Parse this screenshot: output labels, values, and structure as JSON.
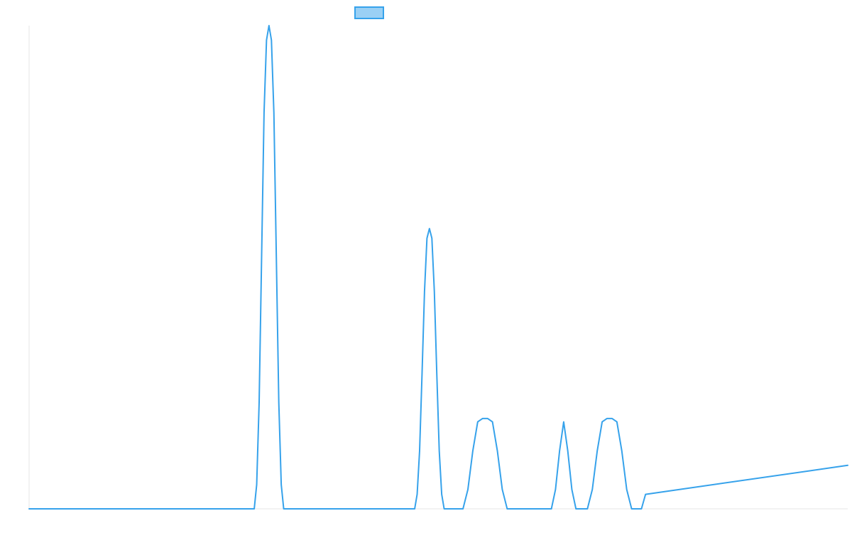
{
  "chart_data": {
    "type": "line",
    "title": "",
    "xlabel": "",
    "ylabel": "",
    "xlim": [
      0,
      1000
    ],
    "ylim": [
      0,
      1
    ],
    "grid": false,
    "legend": {
      "placement": "top-center",
      "label": ""
    },
    "series": [
      {
        "color": "#36a2eb",
        "fill_color": "#9ad0f5",
        "x": [
          0,
          275,
          278,
          281,
          284,
          287,
          290,
          293,
          296,
          299,
          302,
          305,
          308,
          311,
          314,
          471,
          474,
          477,
          480,
          483,
          486,
          489,
          492,
          495,
          498,
          501,
          504,
          507,
          510,
          530,
          536,
          542,
          548,
          554,
          560,
          566,
          572,
          578,
          584,
          590,
          638,
          643,
          648,
          653,
          658,
          663,
          668,
          673,
          678,
          682,
          688,
          694,
          700,
          706,
          712,
          718,
          724,
          730,
          736,
          742,
          748,
          753,
          1000
        ],
        "y": [
          0,
          0,
          0.05,
          0.22,
          0.52,
          0.82,
          0.97,
          1.0,
          0.97,
          0.82,
          0.52,
          0.22,
          0.05,
          0.0,
          0,
          0,
          0.03,
          0.12,
          0.28,
          0.45,
          0.56,
          0.58,
          0.56,
          0.45,
          0.28,
          0.12,
          0.03,
          0,
          0,
          0,
          0.04,
          0.12,
          0.18,
          0.187,
          0.187,
          0.18,
          0.12,
          0.04,
          0.0,
          0,
          0,
          0.04,
          0.12,
          0.18,
          0.12,
          0.04,
          0.0,
          0,
          0,
          0,
          0.04,
          0.12,
          0.18,
          0.187,
          0.187,
          0.18,
          0.12,
          0.04,
          0.0,
          0,
          0,
          0.03,
          0.09
        ]
      }
    ]
  }
}
